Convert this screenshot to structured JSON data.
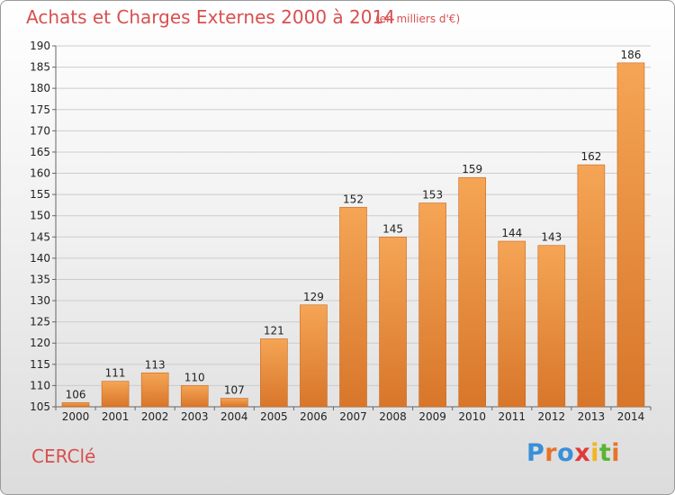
{
  "title": "Achats et Charges Externes 2000 à 2014",
  "subtitle": "(en milliers d'€)",
  "commune": "CERClé",
  "logo": {
    "letters": [
      "P",
      "r",
      "o",
      "x",
      "i",
      "t",
      "i"
    ],
    "colors": [
      "#3a8fd8",
      "#e8732a",
      "#3a8fd8",
      "#e03a3a",
      "#f2b51f",
      "#5bb532",
      "#e8732a"
    ]
  },
  "colors": {
    "bar": "#f0953e",
    "bar_dark": "#d8762a",
    "title": "#d94f4f"
  },
  "chart_data": {
    "type": "bar",
    "title": "Achats et Charges Externes 2000 à 2014",
    "subtitle": "(en milliers d'€)",
    "categories": [
      "2000",
      "2001",
      "2002",
      "2003",
      "2004",
      "2005",
      "2006",
      "2007",
      "2008",
      "2009",
      "2010",
      "2011",
      "2012",
      "2013",
      "2014"
    ],
    "values": [
      106,
      111,
      113,
      110,
      107,
      121,
      129,
      152,
      145,
      153,
      159,
      144,
      143,
      162,
      186
    ],
    "yticks": [
      105,
      110,
      115,
      120,
      125,
      130,
      135,
      140,
      145,
      150,
      155,
      160,
      165,
      170,
      175,
      180,
      185,
      190
    ],
    "ylim": [
      105,
      190
    ],
    "grid": true,
    "xlabel": "",
    "ylabel": ""
  }
}
